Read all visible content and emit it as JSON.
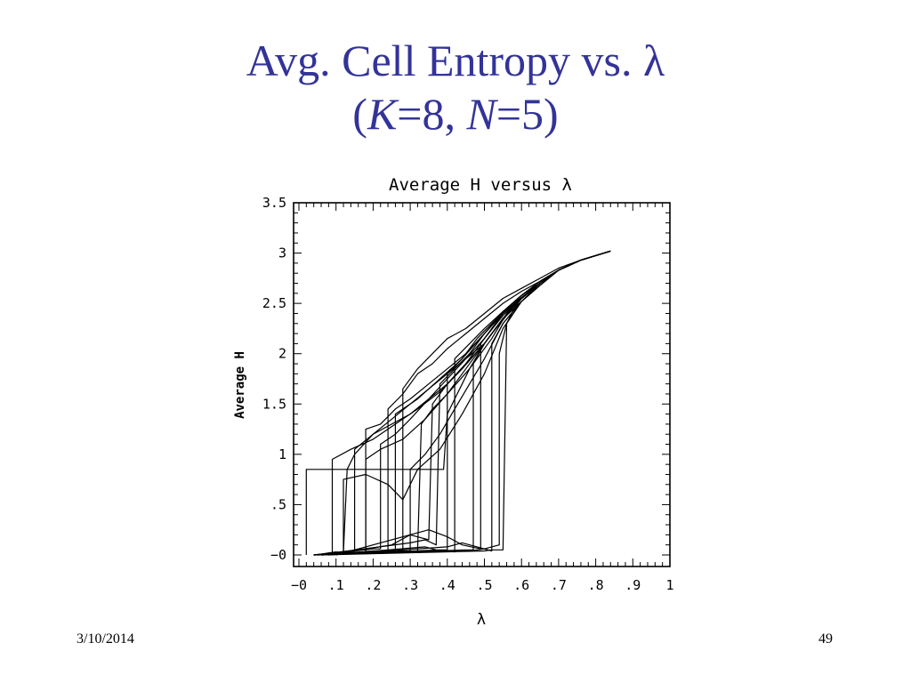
{
  "slide": {
    "title_line1": "Avg. Cell Entropy vs. λ",
    "title_line2": {
      "open": "(",
      "k_var": "K",
      "k_eq": "=8, ",
      "n_var": "N",
      "n_eq": "=5)"
    },
    "date": "3/10/2014",
    "page_number": "49",
    "title_color": "#333399"
  },
  "chart_data": {
    "type": "line",
    "title": "Average H versus λ",
    "xlabel": "λ",
    "ylabel": "Average H",
    "xlim": [
      0,
      1
    ],
    "ylim": [
      0,
      3.5
    ],
    "x_ticks": [
      {
        "v": 0,
        "label": "−0"
      },
      {
        "v": 0.1,
        "label": ".1"
      },
      {
        "v": 0.2,
        "label": ".2"
      },
      {
        "v": 0.3,
        "label": ".3"
      },
      {
        "v": 0.4,
        "label": ".4"
      },
      {
        "v": 0.5,
        "label": ".5"
      },
      {
        "v": 0.6,
        "label": ".6"
      },
      {
        "v": 0.7,
        "label": ".7"
      },
      {
        "v": 0.8,
        "label": ".8"
      },
      {
        "v": 0.9,
        "label": ".9"
      },
      {
        "v": 1.0,
        "label": "1"
      }
    ],
    "y_ticks": [
      {
        "v": 0,
        "label": "−0"
      },
      {
        "v": 0.5,
        "label": ".5"
      },
      {
        "v": 1.0,
        "label": "1"
      },
      {
        "v": 1.5,
        "label": "1.5"
      },
      {
        "v": 2.0,
        "label": "2"
      },
      {
        "v": 2.5,
        "label": "2.5"
      },
      {
        "v": 3.0,
        "label": "3"
      },
      {
        "v": 3.5,
        "label": "3.5"
      }
    ],
    "grid": false,
    "legend": "none",
    "line_color": "#000000",
    "series": [
      {
        "x": [
          0.02,
          0.02,
          0.39,
          0.4,
          0.42,
          0.44,
          0.46,
          0.5,
          0.55,
          0.6,
          0.65,
          0.7,
          0.76,
          0.84
        ],
        "y": [
          0.0,
          0.85,
          0.85,
          1.4,
          1.55,
          1.7,
          1.85,
          2.1,
          2.35,
          2.55,
          2.7,
          2.83,
          2.93,
          3.02
        ]
      },
      {
        "x": [
          0.05,
          0.08,
          0.1,
          0.12,
          0.13,
          0.15,
          0.2,
          0.25,
          0.3,
          0.35,
          0.4,
          0.45,
          0.5,
          0.55,
          0.6,
          0.65,
          0.7,
          0.76,
          0.84
        ],
        "y": [
          0.0,
          0.02,
          0.03,
          0.02,
          0.85,
          1.0,
          1.2,
          1.35,
          1.5,
          1.65,
          1.8,
          1.95,
          2.1,
          2.35,
          2.55,
          2.7,
          2.83,
          2.93,
          3.02
        ]
      },
      {
        "x": [
          0.04,
          0.2,
          0.24,
          0.24,
          0.28,
          0.32,
          0.36,
          0.4,
          0.45,
          0.5,
          0.55,
          0.6,
          0.65,
          0.7,
          0.76,
          0.84
        ],
        "y": [
          0.0,
          0.02,
          0.03,
          1.45,
          1.6,
          1.8,
          1.9,
          2.05,
          2.2,
          2.35,
          2.5,
          2.62,
          2.72,
          2.83,
          2.93,
          3.02
        ]
      },
      {
        "x": [
          0.04,
          0.15,
          0.15,
          0.2,
          0.25,
          0.3,
          0.35,
          0.4,
          0.45,
          0.5,
          0.55,
          0.6,
          0.65,
          0.7,
          0.76,
          0.84
        ],
        "y": [
          0.0,
          0.02,
          1.05,
          1.2,
          1.3,
          1.4,
          1.55,
          1.7,
          1.9,
          2.15,
          2.4,
          2.58,
          2.7,
          2.83,
          2.93,
          3.02
        ]
      },
      {
        "x": [
          0.04,
          0.12,
          0.12,
          0.18,
          0.24,
          0.28,
          0.32,
          0.38,
          0.44,
          0.5,
          0.55,
          0.6,
          0.65,
          0.7,
          0.76,
          0.84
        ],
        "y": [
          0.0,
          0.02,
          0.75,
          0.8,
          0.7,
          0.55,
          0.85,
          1.05,
          1.4,
          1.8,
          2.25,
          2.52,
          2.68,
          2.83,
          2.93,
          3.02
        ]
      },
      {
        "x": [
          0.04,
          0.46,
          0.5,
          0.52,
          0.54,
          0.54,
          0.56,
          0.6,
          0.65,
          0.7,
          0.76,
          0.84
        ],
        "y": [
          0.0,
          0.04,
          0.06,
          0.08,
          0.1,
          2.0,
          2.3,
          2.52,
          2.7,
          2.83,
          2.93,
          3.02
        ]
      },
      {
        "x": [
          0.06,
          0.5,
          0.52,
          0.55,
          0.56,
          0.58,
          0.6,
          0.65,
          0.7,
          0.76,
          0.84
        ],
        "y": [
          0.0,
          0.04,
          0.05,
          0.05,
          2.3,
          2.45,
          2.55,
          2.7,
          2.83,
          2.93,
          3.02
        ]
      },
      {
        "x": [
          0.05,
          0.3,
          0.34,
          0.37,
          0.38,
          0.42,
          0.46,
          0.5,
          0.55,
          0.6,
          0.65,
          0.7,
          0.76,
          0.84
        ],
        "y": [
          0.0,
          0.12,
          0.15,
          0.1,
          1.7,
          1.85,
          2.0,
          2.2,
          2.4,
          2.55,
          2.7,
          2.83,
          2.93,
          3.02
        ]
      },
      {
        "x": [
          0.05,
          0.26,
          0.28,
          0.28,
          0.32,
          0.36,
          0.4,
          0.45,
          0.5,
          0.55,
          0.6,
          0.65,
          0.7,
          0.76,
          0.84
        ],
        "y": [
          0.0,
          0.03,
          0.05,
          1.65,
          1.85,
          2.0,
          2.15,
          2.25,
          2.4,
          2.55,
          2.65,
          2.75,
          2.85,
          2.93,
          3.02
        ]
      },
      {
        "x": [
          0.05,
          0.12,
          0.18,
          0.18,
          0.22,
          0.26,
          0.3,
          0.35,
          0.4,
          0.45,
          0.5,
          0.55,
          0.6,
          0.65,
          0.7,
          0.76,
          0.84
        ],
        "y": [
          0.0,
          0.02,
          0.03,
          1.25,
          1.3,
          1.45,
          1.55,
          1.7,
          1.85,
          2.0,
          2.2,
          2.4,
          2.55,
          2.7,
          2.83,
          2.93,
          3.02
        ]
      },
      {
        "x": [
          0.08,
          0.4,
          0.44,
          0.48,
          0.52,
          0.52,
          0.55,
          0.6,
          0.65,
          0.7,
          0.76,
          0.84
        ],
        "y": [
          0.0,
          0.08,
          0.12,
          0.08,
          0.04,
          2.1,
          2.3,
          2.52,
          2.68,
          2.83,
          2.93,
          3.02
        ]
      },
      {
        "x": [
          0.06,
          0.32,
          0.33,
          0.36,
          0.4,
          0.44,
          0.48,
          0.52,
          0.56,
          0.6,
          0.65,
          0.7,
          0.76,
          0.84
        ],
        "y": [
          0.0,
          0.04,
          1.3,
          1.45,
          1.6,
          1.8,
          2.0,
          2.2,
          2.38,
          2.52,
          2.68,
          2.83,
          2.93,
          3.02
        ]
      },
      {
        "x": [
          0.1,
          0.35,
          0.4,
          0.44,
          0.49,
          0.49,
          0.52,
          0.56,
          0.6,
          0.65,
          0.7,
          0.76,
          0.84
        ],
        "y": [
          0.0,
          0.25,
          0.18,
          0.1,
          0.06,
          2.1,
          2.25,
          2.45,
          2.58,
          2.72,
          2.83,
          2.93,
          3.02
        ]
      },
      {
        "x": [
          0.08,
          0.34,
          0.37,
          0.42,
          0.42,
          0.46,
          0.5,
          0.55,
          0.6,
          0.65,
          0.7,
          0.76,
          0.84
        ],
        "y": [
          0.0,
          0.08,
          0.05,
          0.03,
          1.95,
          2.1,
          2.25,
          2.42,
          2.56,
          2.7,
          2.83,
          2.93,
          3.02
        ]
      },
      {
        "x": [
          0.06,
          0.2,
          0.22,
          0.22,
          0.26,
          0.3,
          0.35,
          0.4,
          0.45,
          0.5,
          0.55,
          0.6,
          0.65,
          0.7,
          0.76,
          0.84
        ],
        "y": [
          0.0,
          0.06,
          0.06,
          1.1,
          1.2,
          1.35,
          1.55,
          1.75,
          1.95,
          2.15,
          2.38,
          2.55,
          2.7,
          2.83,
          2.93,
          3.02
        ]
      },
      {
        "x": [
          0.08,
          0.25,
          0.3,
          0.35,
          0.36,
          0.4,
          0.45,
          0.5,
          0.55,
          0.6,
          0.65,
          0.7,
          0.76,
          0.84
        ],
        "y": [
          0.0,
          0.1,
          0.2,
          0.15,
          1.5,
          1.7,
          1.9,
          2.1,
          2.35,
          2.55,
          2.7,
          2.83,
          2.93,
          3.02
        ]
      },
      {
        "x": [
          0.05,
          0.28,
          0.3,
          0.3,
          0.34,
          0.38,
          0.42,
          0.46,
          0.5,
          0.55,
          0.6,
          0.65,
          0.7,
          0.76,
          0.84
        ],
        "y": [
          0.0,
          0.04,
          0.04,
          0.85,
          1.0,
          1.2,
          1.45,
          1.7,
          1.95,
          2.3,
          2.52,
          2.7,
          2.83,
          2.93,
          3.02
        ]
      },
      {
        "x": [
          0.04,
          0.09,
          0.09,
          0.14,
          0.2,
          0.26,
          0.32,
          0.38,
          0.44,
          0.5,
          0.55,
          0.6,
          0.65,
          0.7,
          0.76,
          0.84
        ],
        "y": [
          0.0,
          0.02,
          0.95,
          1.05,
          1.15,
          1.3,
          1.45,
          1.62,
          1.85,
          2.1,
          2.35,
          2.55,
          2.7,
          2.83,
          2.93,
          3.02
        ]
      },
      {
        "x": [
          0.04,
          0.38,
          0.4,
          0.4,
          0.44,
          0.48,
          0.52,
          0.56,
          0.6,
          0.65,
          0.7,
          0.76,
          0.84
        ],
        "y": [
          0.0,
          0.05,
          0.05,
          1.8,
          1.95,
          2.15,
          2.3,
          2.45,
          2.58,
          2.72,
          2.83,
          2.93,
          3.02
        ]
      },
      {
        "x": [
          0.06,
          0.45,
          0.47,
          0.47,
          0.5,
          0.55,
          0.6,
          0.65,
          0.7,
          0.76,
          0.84
        ],
        "y": [
          0.0,
          0.05,
          0.05,
          1.9,
          2.1,
          2.35,
          2.55,
          2.7,
          2.83,
          2.93,
          3.02
        ]
      },
      {
        "x": [
          0.04,
          0.16,
          0.18,
          0.18,
          0.22,
          0.28,
          0.34,
          0.4,
          0.46,
          0.52,
          0.56,
          0.6,
          0.65,
          0.7,
          0.76,
          0.84
        ],
        "y": [
          0.0,
          0.05,
          0.05,
          0.95,
          1.05,
          1.15,
          1.35,
          1.6,
          1.85,
          2.15,
          2.4,
          2.55,
          2.7,
          2.83,
          2.93,
          3.02
        ]
      },
      {
        "x": [
          0.06,
          0.2,
          0.22,
          0.26,
          0.26,
          0.32,
          0.38,
          0.44,
          0.5,
          0.55,
          0.6,
          0.65,
          0.7,
          0.76,
          0.84
        ],
        "y": [
          0.0,
          0.04,
          0.04,
          0.04,
          1.4,
          1.55,
          1.75,
          1.95,
          2.2,
          2.42,
          2.58,
          2.72,
          2.83,
          2.93,
          3.02
        ]
      }
    ]
  }
}
